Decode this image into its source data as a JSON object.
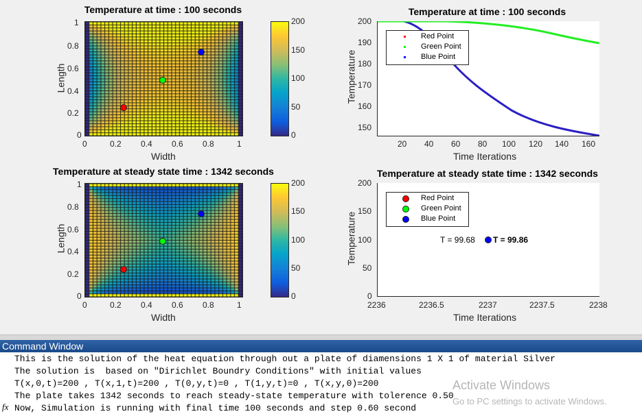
{
  "figure": {
    "heatmap_top": {
      "title": "Temperature at time : 100 seconds",
      "xlabel": "Width",
      "ylabel": "Length",
      "xticks": [
        "0",
        "0.2",
        "0.4",
        "0.6",
        "0.8",
        "1"
      ],
      "yticks": [
        "0",
        "0.2",
        "0.4",
        "0.6",
        "0.8",
        "1"
      ],
      "colorbar_ticks": [
        "0",
        "50",
        "100",
        "150",
        "200"
      ],
      "state": "transient"
    },
    "heatmap_bottom": {
      "title": "Temperature at steady state time : 1342 seconds",
      "xlabel": "Width",
      "ylabel": "Length",
      "xticks": [
        "0",
        "0.2",
        "0.4",
        "0.6",
        "0.8",
        "1"
      ],
      "yticks": [
        "0",
        "0.2",
        "0.4",
        "0.6",
        "0.8",
        "1"
      ],
      "colorbar_ticks": [
        "0",
        "50",
        "100",
        "150",
        "200"
      ],
      "state": "steady"
    },
    "line_top": {
      "title": "Temperature at time : 100 seconds",
      "xlabel": "Time Iterations",
      "ylabel": "Temperature",
      "xticks": [
        "20",
        "40",
        "60",
        "80",
        "100",
        "120",
        "140",
        "160"
      ],
      "yticks": [
        "150",
        "160",
        "170",
        "180",
        "190",
        "200"
      ],
      "legend": [
        "Red Point",
        "Green Point",
        "Blue Point"
      ]
    },
    "line_bottom": {
      "title": "Temperature at steady state time : 1342 seconds",
      "xlabel": "Time Iterations",
      "ylabel": "Temperature",
      "xticks": [
        "2236",
        "2236.5",
        "2237",
        "2237.5",
        "2238"
      ],
      "yticks": [
        "0",
        "50",
        "100",
        "150",
        "200"
      ],
      "legend": [
        "Red Point",
        "Green Point",
        "Blue Point"
      ],
      "annotation_left": "T =  99.68",
      "annotation_right": "T =  99.86"
    }
  },
  "colors": {
    "red_point": "#ff0000",
    "green_point": "#00ff00",
    "blue_point": "#0000ff",
    "blue_line": "#2a1fc4",
    "green_line": "#22ee22",
    "cmd_header": "#1f4f8f"
  },
  "command_window": {
    "title": "Command Window",
    "prompt_icon": "fx",
    "lines": [
      "This is the solution of the heat equation through out a plate of diamensions 1 X 1 of material Silver",
      "The solution is  based on \"Dirichlet Boundry Conditions\" with initial values",
      "T(x,0,t)=200 , T(x,1,t)=200 , T(0,y,t)=0 , T(1,y,t)=0 , T(x,y,0)=200",
      "The plate takes 1342 seconds to reach steady-state temperature with tolerence 0.50",
      "Now, Simulation is running with final time 100 seconds and step 0.60 second"
    ]
  },
  "watermark": {
    "title": "Activate Windows",
    "subtitle": "Go to PC settings to activate Windows."
  },
  "chart_data": [
    {
      "type": "heatmap",
      "title": "Temperature at time : 100 seconds",
      "xlabel": "Width",
      "ylabel": "Length",
      "xlim": [
        0,
        1
      ],
      "ylim": [
        0,
        1
      ],
      "colorbar_range": [
        0,
        200
      ],
      "grid": "approx 40x40 cells",
      "markers": [
        {
          "name": "Red Point",
          "x": 0.25,
          "y": 0.25
        },
        {
          "name": "Green Point",
          "x": 0.5,
          "y": 0.5
        },
        {
          "name": "Blue Point",
          "x": 0.75,
          "y": 0.75
        }
      ]
    },
    {
      "type": "line",
      "title": "Temperature at time : 100 seconds",
      "xlabel": "Time Iterations",
      "ylabel": "Temperature",
      "xlim": [
        1,
        167
      ],
      "ylim": [
        146,
        200
      ],
      "series": [
        {
          "name": "Red Point",
          "x": [
            1,
            10,
            20,
            30,
            40,
            60,
            80,
            100,
            120,
            140,
            167
          ],
          "values": [
            200,
            200,
            199.5,
            196,
            191,
            181,
            172.5,
            164.5,
            158,
            152,
            146
          ]
        },
        {
          "name": "Green Point",
          "x": [
            1,
            20,
            40,
            60,
            80,
            100,
            120,
            140,
            167
          ],
          "values": [
            200,
            200,
            200,
            200,
            199.7,
            198.6,
            196.7,
            193.8,
            189.5
          ]
        },
        {
          "name": "Blue Point",
          "x": [
            1,
            10,
            20,
            30,
            40,
            60,
            80,
            100,
            120,
            140,
            167
          ],
          "values": [
            200,
            200,
            199.5,
            196,
            191,
            181,
            172.5,
            164.5,
            158,
            152,
            146
          ]
        }
      ],
      "legend_position": "upper left"
    },
    {
      "type": "heatmap",
      "title": "Temperature at steady state time : 1342 seconds",
      "xlabel": "Width",
      "ylabel": "Length",
      "xlim": [
        0,
        1
      ],
      "ylim": [
        0,
        1
      ],
      "colorbar_range": [
        0,
        200
      ],
      "markers": [
        {
          "name": "Red Point",
          "x": 0.25,
          "y": 0.25
        },
        {
          "name": "Green Point",
          "x": 0.5,
          "y": 0.5
        },
        {
          "name": "Blue Point",
          "x": 0.75,
          "y": 0.75
        }
      ]
    },
    {
      "type": "scatter",
      "title": "Temperature at steady state time : 1342 seconds",
      "xlabel": "Time Iterations",
      "ylabel": "Temperature",
      "xlim": [
        2236,
        2238
      ],
      "ylim": [
        0,
        200
      ],
      "series": [
        {
          "name": "Red Point",
          "x": [
            2237
          ],
          "values": [
            99.86
          ]
        },
        {
          "name": "Green Point",
          "x": [
            2237
          ],
          "values": [
            99.68
          ]
        },
        {
          "name": "Blue Point",
          "x": [
            2237
          ],
          "values": [
            99.86
          ]
        }
      ],
      "annotations": [
        "T =  99.68",
        "T =  99.86"
      ],
      "legend_position": "upper left"
    }
  ]
}
